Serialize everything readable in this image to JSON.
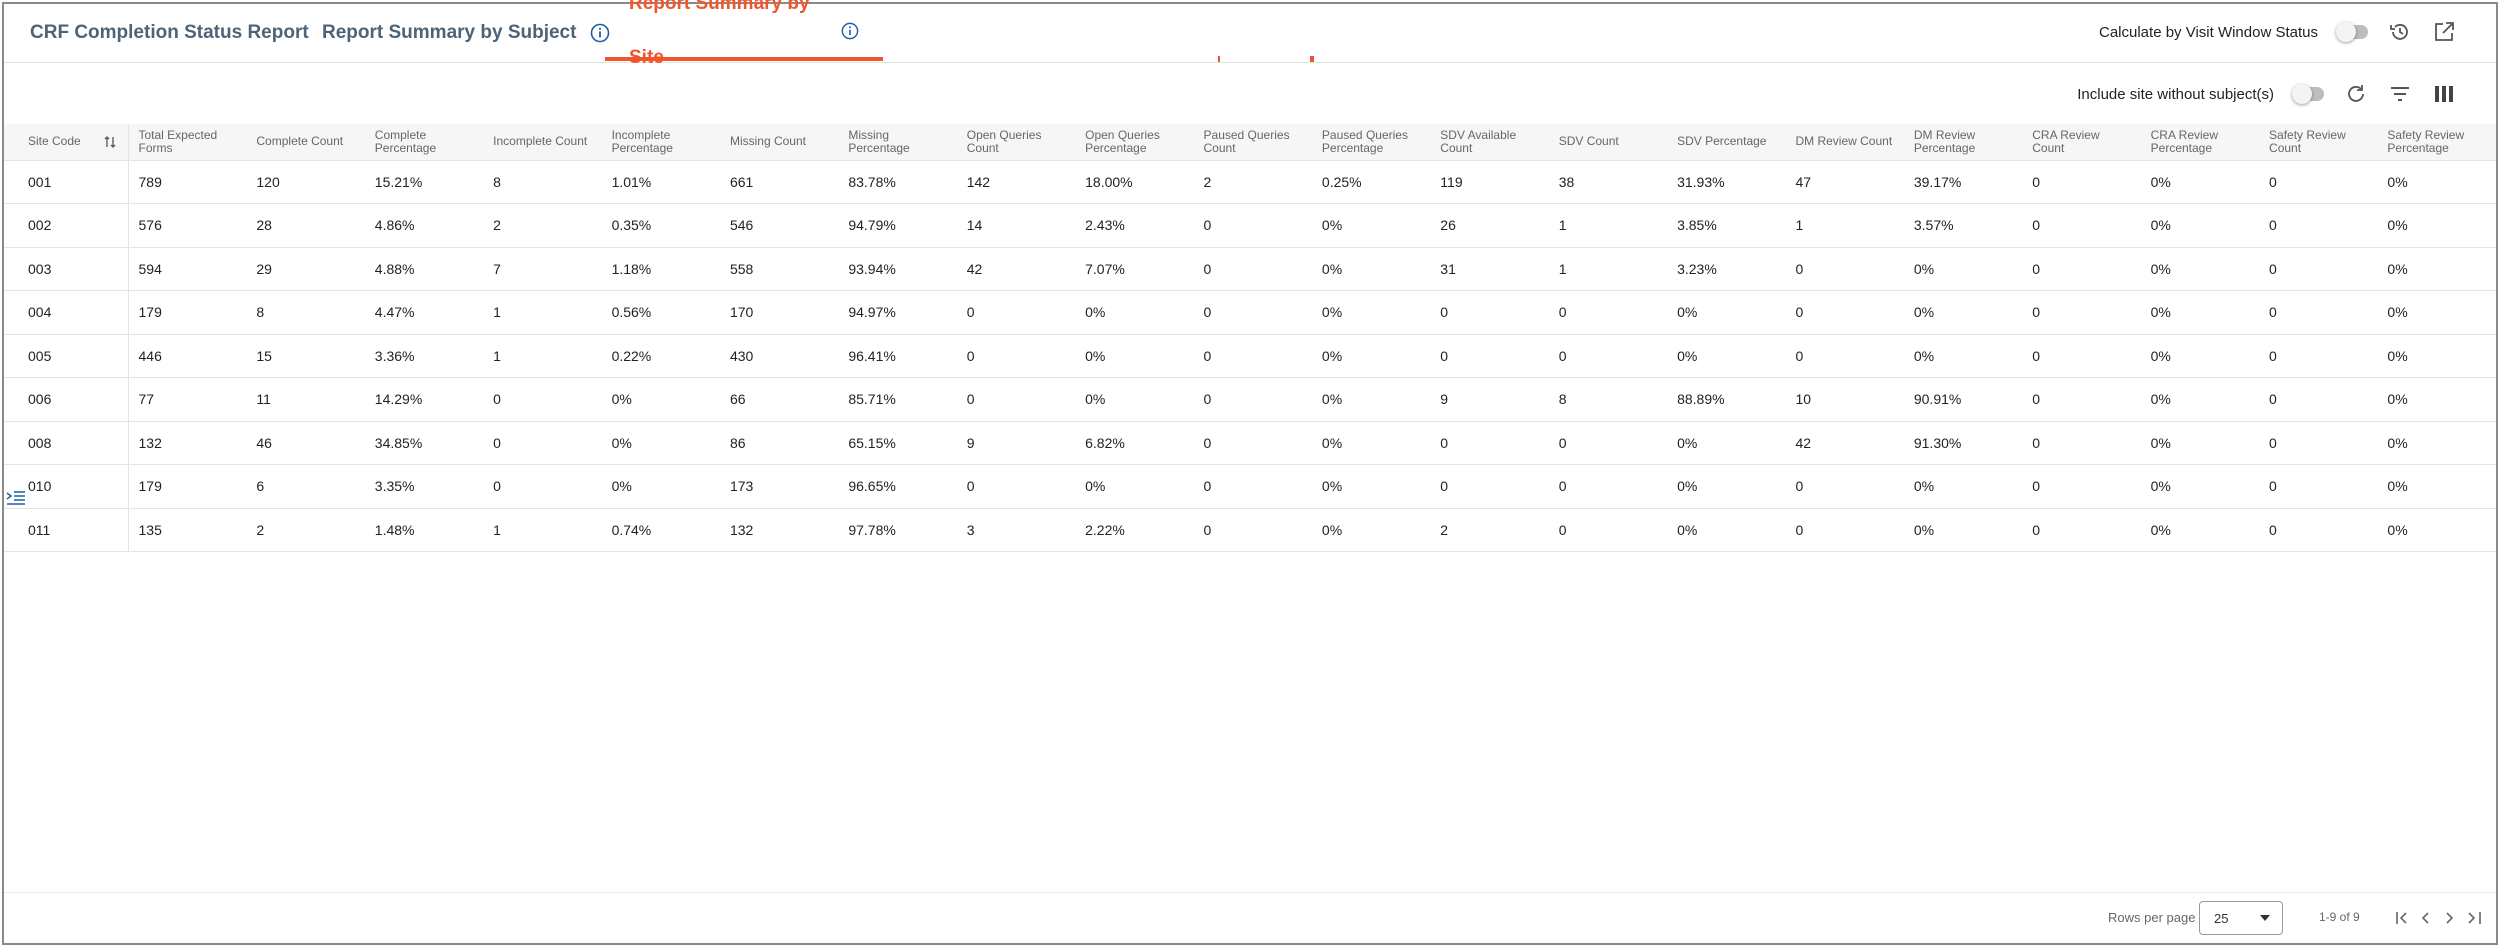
{
  "tabs": [
    "CRF Completion Status Report",
    "Report Summary by Subject",
    "Report Summary by Site"
  ],
  "toolbar": {
    "visit_window_label": "Calculate by Visit Window Status",
    "include_site_label": "Include site without subject(s)"
  },
  "table": {
    "headers": [
      "Site Code",
      "Total Expected Forms",
      "Complete Count",
      "Complete Percentage",
      "Incomplete Count",
      "Incomplete Percentage",
      "Missing Count",
      "Missing Percentage",
      "Open Queries Count",
      "Open Queries Percentage",
      "Paused Queries Count",
      "Paused Queries Percentage",
      "SDV Available Count",
      "SDV Count",
      "SDV Percentage",
      "DM Review Count",
      "DM Review Percentage",
      "CRA Review Count",
      "CRA Review Percentage",
      "Safety Review Count",
      "Safety Review Percentage"
    ],
    "rows": [
      [
        "001",
        "789",
        "120",
        "15.21%",
        "8",
        "1.01%",
        "661",
        "83.78%",
        "142",
        "18.00%",
        "2",
        "0.25%",
        "119",
        "38",
        "31.93%",
        "47",
        "39.17%",
        "0",
        "0%",
        "0",
        "0%"
      ],
      [
        "002",
        "576",
        "28",
        "4.86%",
        "2",
        "0.35%",
        "546",
        "94.79%",
        "14",
        "2.43%",
        "0",
        "0%",
        "26",
        "1",
        "3.85%",
        "1",
        "3.57%",
        "0",
        "0%",
        "0",
        "0%"
      ],
      [
        "003",
        "594",
        "29",
        "4.88%",
        "7",
        "1.18%",
        "558",
        "93.94%",
        "42",
        "7.07%",
        "0",
        "0%",
        "31",
        "1",
        "3.23%",
        "0",
        "0%",
        "0",
        "0%",
        "0",
        "0%"
      ],
      [
        "004",
        "179",
        "8",
        "4.47%",
        "1",
        "0.56%",
        "170",
        "94.97%",
        "0",
        "0%",
        "0",
        "0%",
        "0",
        "0",
        "0%",
        "0",
        "0%",
        "0",
        "0%",
        "0",
        "0%"
      ],
      [
        "005",
        "446",
        "15",
        "3.36%",
        "1",
        "0.22%",
        "430",
        "96.41%",
        "0",
        "0%",
        "0",
        "0%",
        "0",
        "0",
        "0%",
        "0",
        "0%",
        "0",
        "0%",
        "0",
        "0%"
      ],
      [
        "006",
        "77",
        "11",
        "14.29%",
        "0",
        "0%",
        "66",
        "85.71%",
        "0",
        "0%",
        "0",
        "0%",
        "9",
        "8",
        "88.89%",
        "10",
        "90.91%",
        "0",
        "0%",
        "0",
        "0%"
      ],
      [
        "008",
        "132",
        "46",
        "34.85%",
        "0",
        "0%",
        "86",
        "65.15%",
        "9",
        "6.82%",
        "0",
        "0%",
        "0",
        "0",
        "0%",
        "42",
        "91.30%",
        "0",
        "0%",
        "0",
        "0%"
      ],
      [
        "010",
        "179",
        "6",
        "3.35%",
        "0",
        "0%",
        "173",
        "96.65%",
        "0",
        "0%",
        "0",
        "0%",
        "0",
        "0",
        "0%",
        "0",
        "0%",
        "0",
        "0%",
        "0",
        "0%"
      ],
      [
        "011",
        "135",
        "2",
        "1.48%",
        "1",
        "0.74%",
        "132",
        "97.78%",
        "3",
        "2.22%",
        "0",
        "0%",
        "2",
        "0",
        "0%",
        "0",
        "0%",
        "0",
        "0%",
        "0",
        "0%"
      ]
    ]
  },
  "footer": {
    "rows_per_page_label": "Rows per page",
    "rows_per_page": "25",
    "range": "1-9 of 9"
  }
}
